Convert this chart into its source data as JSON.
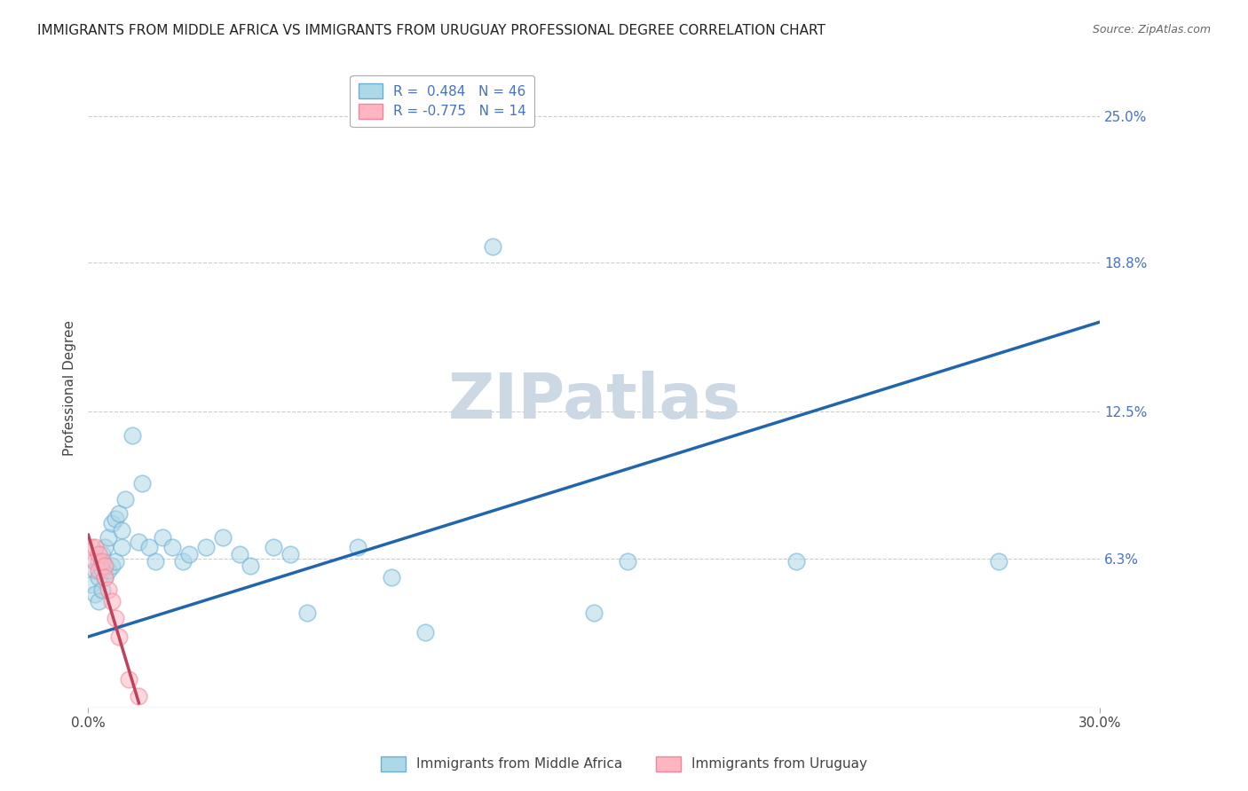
{
  "title": "IMMIGRANTS FROM MIDDLE AFRICA VS IMMIGRANTS FROM URUGUAY PROFESSIONAL DEGREE CORRELATION CHART",
  "source": "Source: ZipAtlas.com",
  "ylabel": "Professional Degree",
  "xlim": [
    0.0,
    0.3
  ],
  "ylim": [
    0.0,
    0.27
  ],
  "xtick_labels": [
    "0.0%",
    "30.0%"
  ],
  "xtick_positions": [
    0.0,
    0.3
  ],
  "ytick_labels": [
    "6.3%",
    "12.5%",
    "18.8%",
    "25.0%"
  ],
  "ytick_positions": [
    0.063,
    0.125,
    0.188,
    0.25
  ],
  "watermark": "ZIPatlas",
  "blue_scatter_x": [
    0.001,
    0.002,
    0.002,
    0.003,
    0.003,
    0.003,
    0.004,
    0.004,
    0.004,
    0.005,
    0.005,
    0.005,
    0.006,
    0.006,
    0.007,
    0.007,
    0.008,
    0.008,
    0.009,
    0.01,
    0.01,
    0.011,
    0.013,
    0.015,
    0.016,
    0.018,
    0.02,
    0.022,
    0.025,
    0.028,
    0.03,
    0.035,
    0.04,
    0.045,
    0.048,
    0.055,
    0.06,
    0.065,
    0.08,
    0.09,
    0.1,
    0.12,
    0.15,
    0.16,
    0.21,
    0.27
  ],
  "blue_scatter_y": [
    0.052,
    0.058,
    0.048,
    0.062,
    0.055,
    0.045,
    0.065,
    0.058,
    0.05,
    0.068,
    0.06,
    0.055,
    0.072,
    0.058,
    0.078,
    0.06,
    0.08,
    0.062,
    0.082,
    0.075,
    0.068,
    0.088,
    0.115,
    0.07,
    0.095,
    0.068,
    0.062,
    0.072,
    0.068,
    0.062,
    0.065,
    0.068,
    0.072,
    0.065,
    0.06,
    0.068,
    0.065,
    0.04,
    0.068,
    0.055,
    0.032,
    0.195,
    0.04,
    0.062,
    0.062,
    0.062
  ],
  "pink_scatter_x": [
    0.001,
    0.002,
    0.002,
    0.003,
    0.003,
    0.004,
    0.005,
    0.005,
    0.006,
    0.007,
    0.008,
    0.009,
    0.012,
    0.015
  ],
  "pink_scatter_y": [
    0.068,
    0.068,
    0.062,
    0.065,
    0.058,
    0.062,
    0.06,
    0.055,
    0.05,
    0.045,
    0.038,
    0.03,
    0.012,
    0.005
  ],
  "blue_line_x": [
    0.0,
    0.3
  ],
  "blue_line_y": [
    0.03,
    0.163
  ],
  "pink_line_x": [
    0.0,
    0.015
  ],
  "pink_line_y": [
    0.073,
    0.002
  ],
  "blue_line_color": "#2166ac",
  "pink_line_color": "#c0415a",
  "blue_dot_facecolor": "#add8e6",
  "blue_dot_edgecolor": "#6aaed6",
  "pink_dot_facecolor": "#ffb6c1",
  "pink_dot_edgecolor": "#f4849a",
  "grid_color": "#cccccc",
  "background_color": "#ffffff",
  "title_fontsize": 11,
  "source_fontsize": 9,
  "ylabel_fontsize": 11,
  "tick_fontsize": 11,
  "legend_fontsize": 11,
  "watermark_color": "#ccd8e4",
  "watermark_fontsize": 52,
  "dot_size": 180,
  "dot_alpha": 0.55
}
